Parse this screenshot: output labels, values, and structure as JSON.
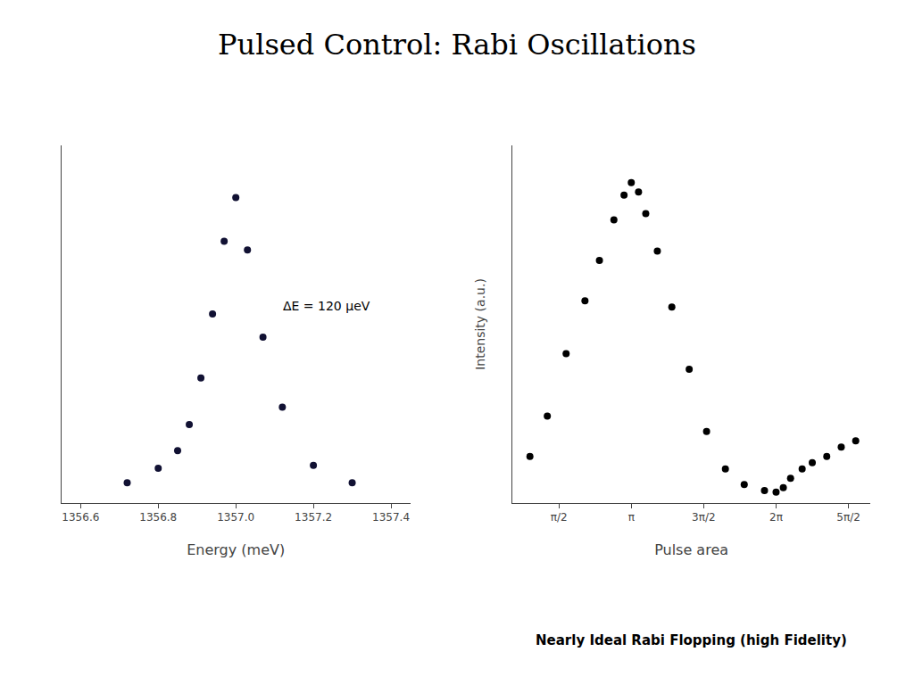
{
  "chart_data": [
    {
      "type": "scatter",
      "title": "Pulsed Control: Rabi Oscillations",
      "x": [
        1356.72,
        1356.8,
        1356.85,
        1356.88,
        1356.91,
        1356.94,
        1356.97,
        1357.0,
        1357.03,
        1357.07,
        1357.12,
        1357.2,
        1357.3
      ],
      "values": [
        0.02,
        0.07,
        0.13,
        0.22,
        0.38,
        0.6,
        0.85,
        1.0,
        0.82,
        0.52,
        0.28,
        0.08,
        0.02
      ],
      "color": "#111133",
      "xlabel": "Energy (meV)",
      "annotation": "ΔE = 120 μeV",
      "xlim": [
        1356.55,
        1357.45
      ],
      "xticks": [
        1356.6,
        1356.8,
        {
          "value": 1357.0,
          "label": "1357.0"
        },
        1357.2,
        1357.4
      ],
      "ylim": [
        -0.05,
        1.18
      ],
      "tick_labels": "x",
      "grid": false
    },
    {
      "type": "scatter",
      "x": [
        0.3,
        0.42,
        0.55,
        0.68,
        0.78,
        0.88,
        0.95,
        1.0,
        1.05,
        1.1,
        1.18,
        1.28,
        1.4,
        1.52,
        1.65,
        1.78,
        1.92,
        2.0,
        2.05,
        2.1,
        2.18,
        2.25,
        2.35,
        2.45,
        2.55
      ],
      "values": [
        0.12,
        0.25,
        0.45,
        0.62,
        0.75,
        0.88,
        0.96,
        1.0,
        0.97,
        0.9,
        0.78,
        0.6,
        0.4,
        0.2,
        0.08,
        0.03,
        0.01,
        0.005,
        0.02,
        0.05,
        0.08,
        0.1,
        0.12,
        0.15,
        0.17
      ],
      "color": "#000000",
      "xlabel": "Pulse area",
      "ylabel": "Intensity (a.u.)",
      "annotation": "Nearly Ideal Rabi Flopping (high Fidelity)",
      "xlim": [
        0.18,
        2.65
      ],
      "xticks": [
        {
          "value": 0.5,
          "label": "π/2"
        },
        {
          "value": 1.0,
          "label": "π"
        },
        {
          "value": 1.5,
          "label": "3π/2"
        },
        {
          "value": 2.0,
          "label": "2π"
        },
        {
          "value": 2.5,
          "label": "5π/2"
        }
      ],
      "ylim": [
        -0.03,
        1.12
      ],
      "tick_labels": "x",
      "grid": false
    }
  ]
}
